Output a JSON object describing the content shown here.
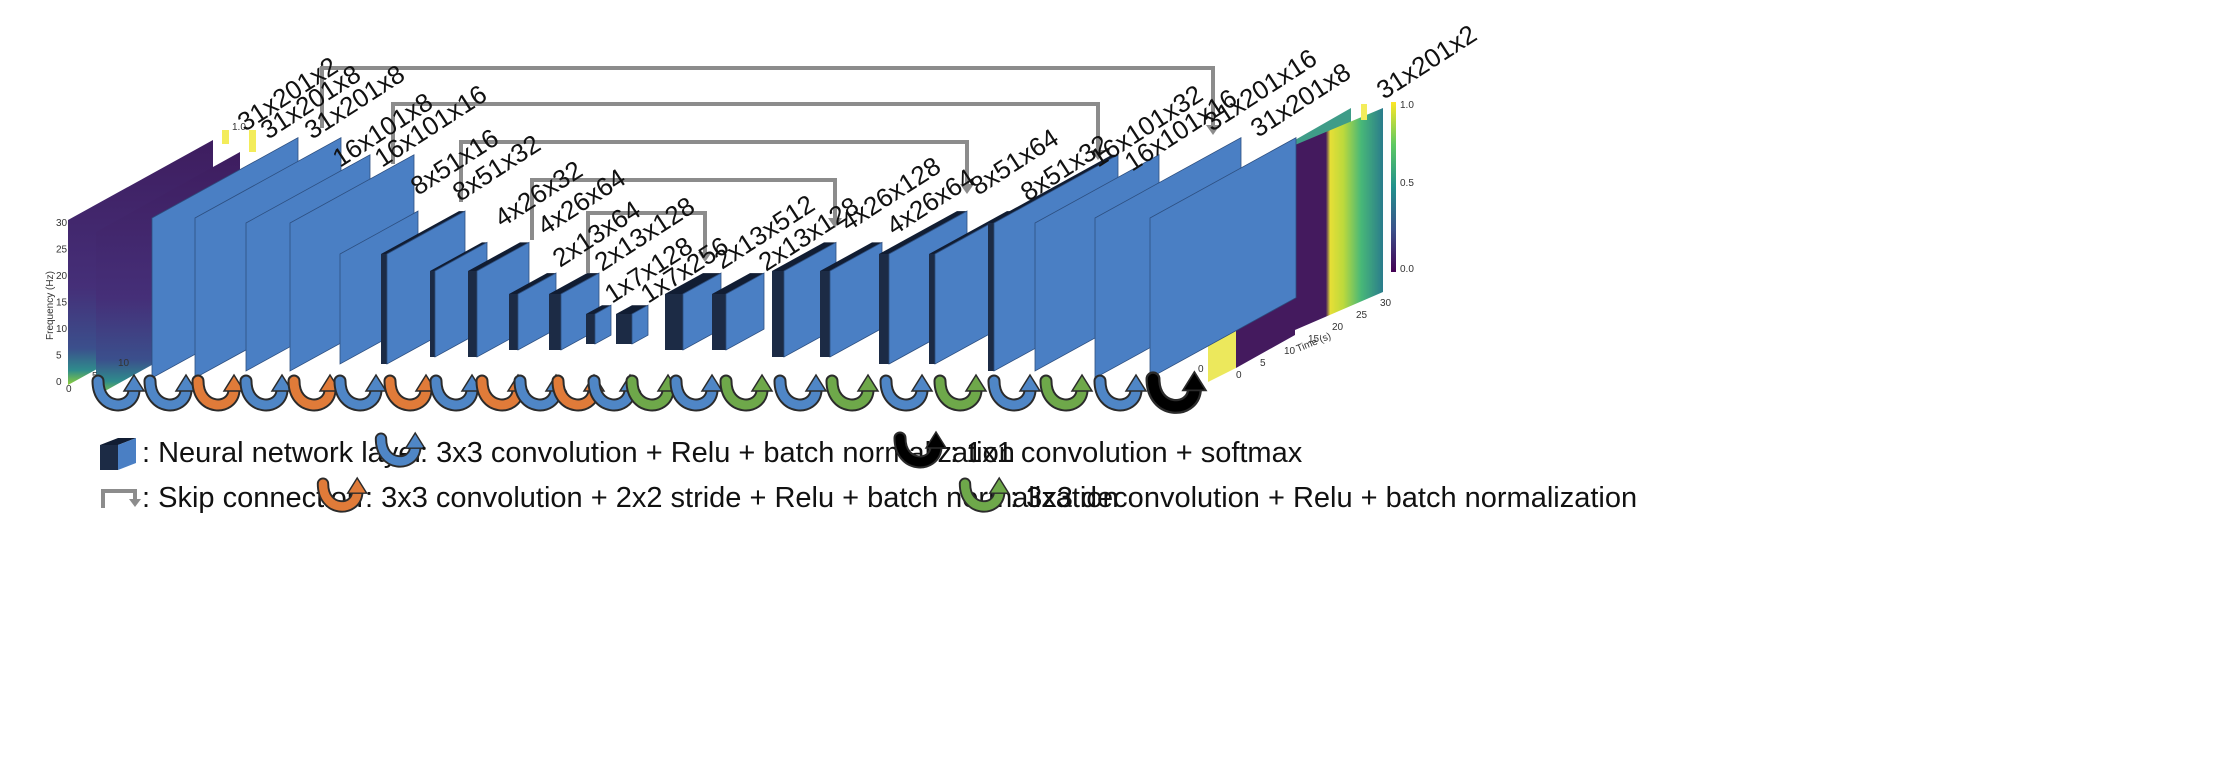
{
  "layers": [
    {
      "label": "31x201x2"
    },
    {
      "label": "31x201x8"
    },
    {
      "label": "31x201x8"
    },
    {
      "label": "16x101x8"
    },
    {
      "label": "16x101x16"
    },
    {
      "label": "8x51x16"
    },
    {
      "label": "8x51x32"
    },
    {
      "label": "4x26x32"
    },
    {
      "label": "4x26x64"
    },
    {
      "label": "2x13x64"
    },
    {
      "label": "2x13x128"
    },
    {
      "label": "1x7x128"
    },
    {
      "label": "1x7x256"
    },
    {
      "label": "2x13x512"
    },
    {
      "label": "2x13x128"
    },
    {
      "label": "4x26x128"
    },
    {
      "label": "4x26x64"
    },
    {
      "label": "8x51x64"
    },
    {
      "label": "8x51x32"
    },
    {
      "label": "16x101x32"
    },
    {
      "label": "16x101x16"
    },
    {
      "label": "31x201x16"
    },
    {
      "label": "31x201x8"
    },
    {
      "label": "31x201x2"
    }
  ],
  "operations": [
    "blue",
    "blue",
    "orange",
    "blue",
    "orange",
    "blue",
    "orange",
    "blue",
    "orange",
    "blue",
    "orange",
    "blue",
    "green",
    "blue",
    "green",
    "blue",
    "green",
    "blue",
    "green",
    "blue",
    "green",
    "blue",
    "black"
  ],
  "colors": {
    "layer_face": "#4a7fc4",
    "layer_dark": "#1c2b45",
    "conv": "#4f86c6",
    "stride": "#e07b39",
    "deconv": "#6ea84a",
    "softmax": "#000000",
    "skip": "#8c8c8c"
  },
  "spectrogram_axes": {
    "freq_label": "Frequency (Hz)",
    "time_label": "Time (s)",
    "freq_ticks": [
      "0",
      "5",
      "10",
      "15",
      "20",
      "25",
      "30"
    ],
    "time_ticks": [
      "0",
      "5",
      "10",
      "15",
      "20",
      "25",
      "30"
    ],
    "colorbar_ticks": [
      "0.0",
      "0.5",
      "1.0"
    ]
  },
  "legend": {
    "layer": ": Neural network layer",
    "conv": ": 3x3 convolution + Relu + batch normalization",
    "softmax": ": 1x1 convolution + softmax",
    "skip": ": Skip connection",
    "stride": ": 3x3 convolution + 2x2 stride + Relu + batch normalization",
    "deconv": ": 3x3 deconvolution + Relu + batch normalization"
  }
}
